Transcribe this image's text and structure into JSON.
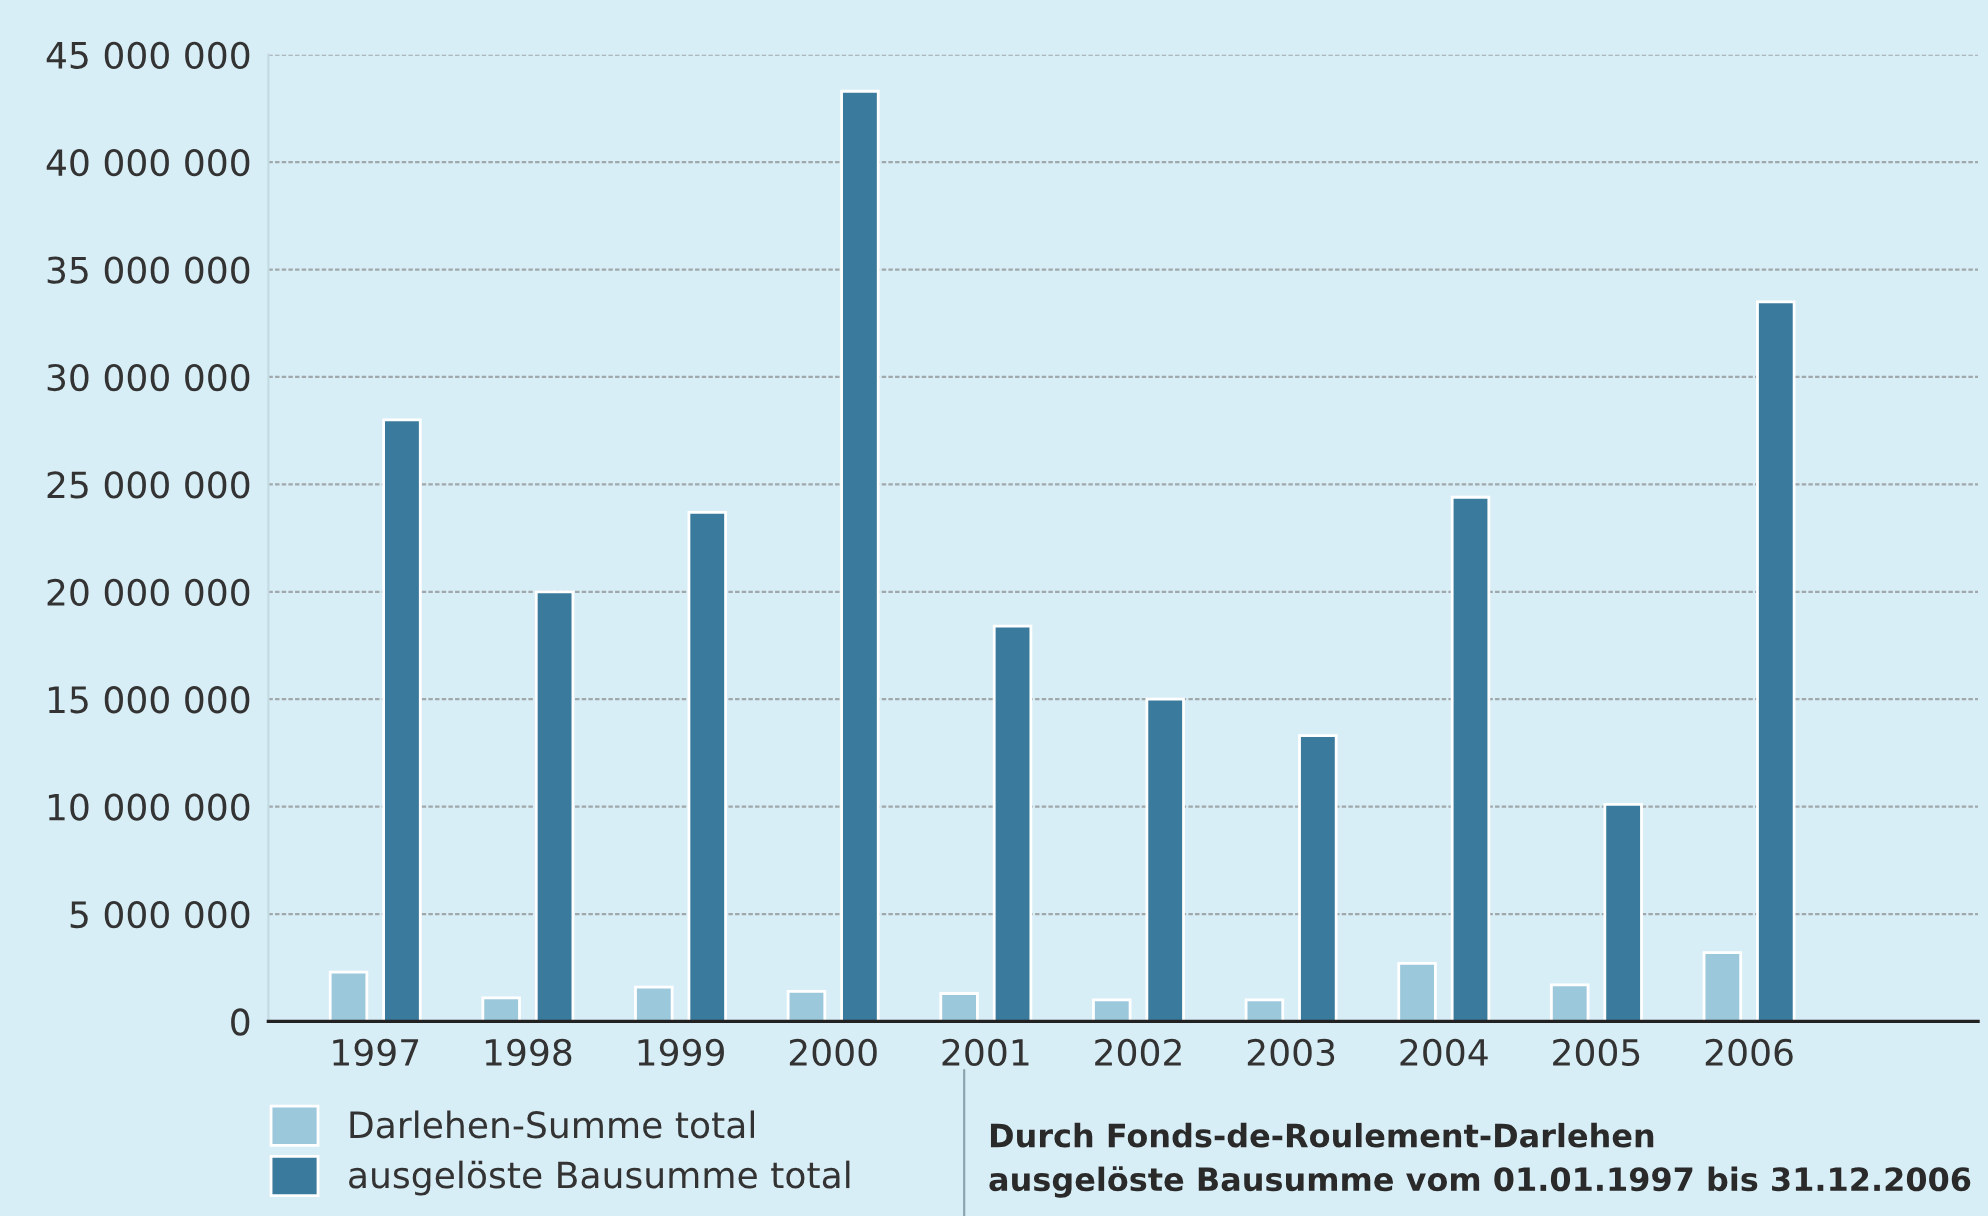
{
  "chart_data": {
    "type": "bar",
    "categories": [
      "1997",
      "1998",
      "1999",
      "2000",
      "2001",
      "2002",
      "2003",
      "2004",
      "2005",
      "2006"
    ],
    "series": [
      {
        "name": "Darlehen-Summe total",
        "color": "#9cc8dc",
        "values": [
          2300000,
          1100000,
          1600000,
          1400000,
          1300000,
          1000000,
          1000000,
          2700000,
          1700000,
          3200000
        ]
      },
      {
        "name": "ausgelöste Bausumme total",
        "color": "#3a7a9c",
        "values": [
          28000000,
          20000000,
          23700000,
          43300000,
          18400000,
          15000000,
          13300000,
          24400000,
          10100000,
          33500000
        ]
      }
    ],
    "ylim": [
      0,
      45000000
    ],
    "yticks": [
      {
        "value": 0,
        "label": "0"
      },
      {
        "value": 5000000,
        "label": "5 000 000"
      },
      {
        "value": 10000000,
        "label": "10 000 000"
      },
      {
        "value": 15000000,
        "label": "15 000 000"
      },
      {
        "value": 20000000,
        "label": "20 000 000"
      },
      {
        "value": 25000000,
        "label": "25 000 000"
      },
      {
        "value": 30000000,
        "label": "30 000 000"
      },
      {
        "value": 35000000,
        "label": "35 000 000"
      },
      {
        "value": 40000000,
        "label": "40 000 000"
      },
      {
        "value": 45000000,
        "label": "45 000 000"
      }
    ],
    "grid": "y",
    "legend": "bottom left",
    "annotations": [
      "Durch Fonds-de-Roulement-Darlehen\nausgelöste Bausumme vom 01.01.1997 bis 31.12.2006"
    ]
  }
}
